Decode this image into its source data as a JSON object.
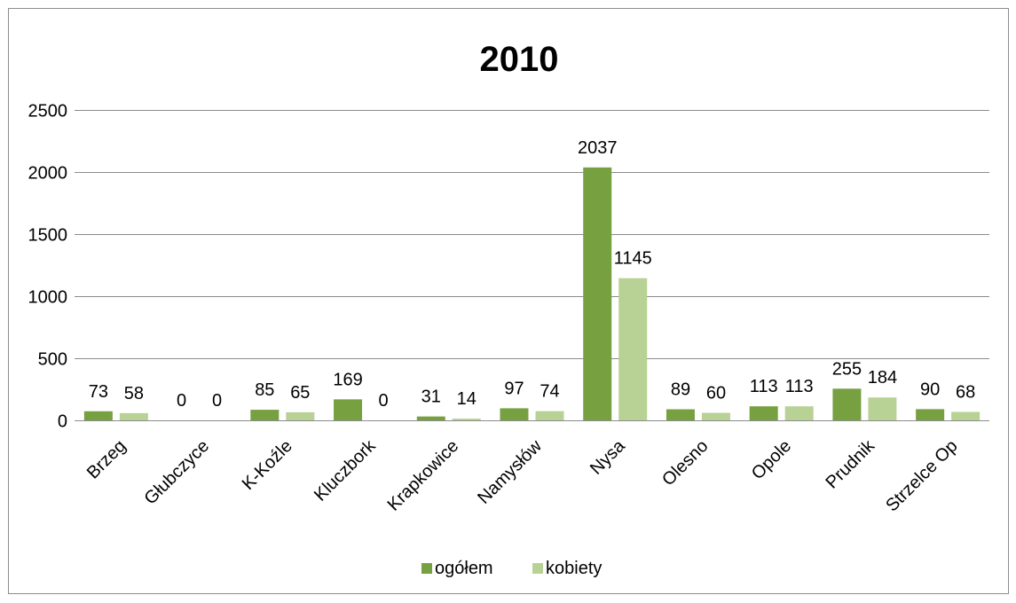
{
  "chart_data": {
    "type": "bar",
    "title": "2010",
    "xlabel": "",
    "ylabel": "",
    "categories": [
      "Brzeg",
      "Głubczyce",
      "K-Koźle",
      "Kluczbork",
      "Krapkowice",
      "Namysłów",
      "Nysa",
      "Olesno",
      "Opole",
      "Prudnik",
      "Strzelce Op"
    ],
    "series": [
      {
        "name": "ogółem",
        "color": "#77a041",
        "values": [
          73,
          0,
          85,
          169,
          31,
          97,
          2037,
          89,
          113,
          255,
          90
        ]
      },
      {
        "name": "kobiety",
        "color": "#b8d295",
        "values": [
          58,
          0,
          65,
          0,
          14,
          74,
          1145,
          60,
          113,
          184,
          68
        ]
      }
    ],
    "yticks": [
      0,
      500,
      1000,
      1500,
      2000,
      2500
    ],
    "ylim": [
      0,
      2500
    ],
    "grid": true,
    "legend_position": "bottom"
  }
}
